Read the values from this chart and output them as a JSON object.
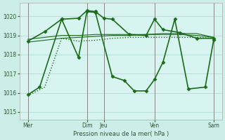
{
  "bg_color": "#cceee8",
  "plot_bg": "#d8f4f0",
  "line_color": "#1a6b1a",
  "grid_color": "#b0ddd5",
  "vline_color": "#888888",
  "xlabel": "Pression niveau de la mer( hPa )",
  "ylim": [
    1014.6,
    1020.7
  ],
  "yticks": [
    1015,
    1016,
    1017,
    1018,
    1019,
    1020
  ],
  "xlim": [
    0,
    12
  ],
  "xtick_positions": [
    0.5,
    4.0,
    5.0,
    8.0,
    11.5
  ],
  "xtick_labels": [
    "Mer",
    "Dim",
    "Jeu",
    "Ven",
    "Sam"
  ],
  "vline_positions": [
    0.5,
    4.0,
    5.0,
    8.0,
    11.5
  ],
  "series": [
    {
      "x": [
        0.5,
        1.5,
        2.5,
        3.5,
        4.5,
        5.5,
        6.5,
        7.5,
        8.5,
        9.5,
        10.5,
        11.5
      ],
      "y": [
        1015.85,
        1016.3,
        1018.85,
        1018.7,
        1018.75,
        1018.85,
        1018.9,
        1018.9,
        1018.9,
        1018.9,
        1018.9,
        1018.85
      ],
      "linestyle": ":",
      "lw": 1.0,
      "marker": null
    },
    {
      "x": [
        0.5,
        1.5,
        2.5,
        3.5,
        4.5,
        5.5,
        6.5,
        7.5,
        8.5,
        9.5,
        10.5,
        11.5
      ],
      "y": [
        1018.65,
        1018.75,
        1018.85,
        1018.9,
        1018.95,
        1019.0,
        1019.0,
        1019.05,
        1019.1,
        1019.1,
        1019.1,
        1018.9
      ],
      "linestyle": "-",
      "lw": 0.8,
      "marker": null
    },
    {
      "x": [
        0.5,
        1.5,
        2.5,
        3.5,
        4.5,
        5.5,
        6.5,
        7.5,
        8.5,
        9.5,
        10.5,
        11.5
      ],
      "y": [
        1018.8,
        1018.9,
        1019.0,
        1019.0,
        1019.05,
        1019.05,
        1019.05,
        1019.05,
        1019.05,
        1019.05,
        1019.0,
        1018.9
      ],
      "linestyle": "-",
      "lw": 0.8,
      "marker": null
    },
    {
      "x": [
        0.5,
        1.5,
        2.5,
        3.5,
        4.0,
        4.5,
        5.0,
        5.5,
        6.5,
        7.5,
        8.0,
        8.5,
        9.5,
        10.5,
        11.5
      ],
      "y": [
        1018.7,
        1019.2,
        1019.85,
        1019.9,
        1020.3,
        1020.25,
        1019.9,
        1019.85,
        1019.05,
        1019.0,
        1019.85,
        1019.3,
        1019.15,
        1018.85,
        1018.85
      ],
      "linestyle": "-",
      "lw": 1.2,
      "marker": "D",
      "ms": 2.5
    },
    {
      "x": [
        0.5,
        1.2,
        2.5,
        3.5,
        4.0,
        4.5,
        5.5,
        6.2,
        6.8,
        7.5,
        8.0,
        8.5,
        9.2,
        10.0,
        11.0,
        11.5
      ],
      "y": [
        1015.9,
        1016.3,
        1019.85,
        1017.85,
        1020.25,
        1020.2,
        1016.85,
        1016.65,
        1016.1,
        1016.1,
        1016.7,
        1017.6,
        1019.85,
        1016.2,
        1016.3,
        1018.75
      ],
      "linestyle": "-",
      "lw": 1.2,
      "marker": "D",
      "ms": 2.5
    }
  ],
  "figsize": [
    3.2,
    2.0
  ],
  "dpi": 100
}
